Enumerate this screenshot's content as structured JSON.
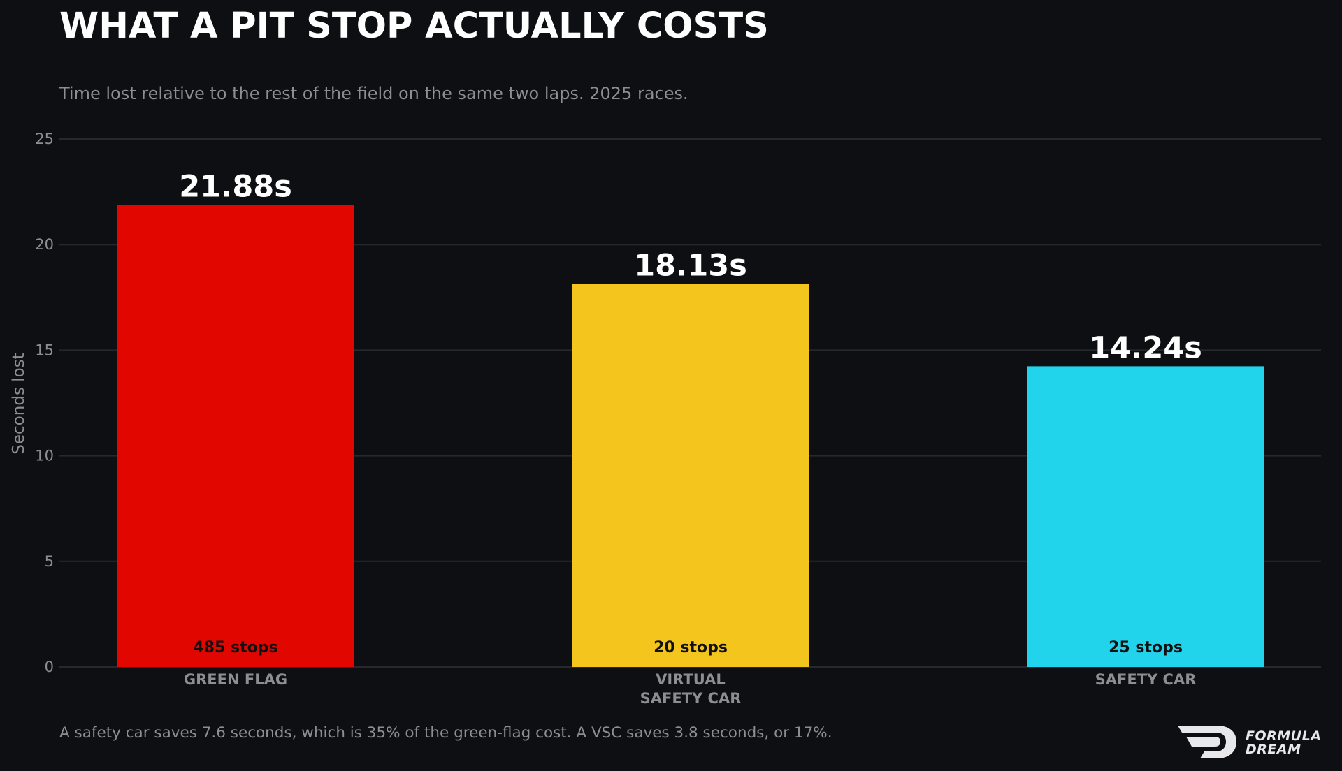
{
  "title": "WHAT A PIT STOP ACTUALLY COSTS",
  "subtitle": "Time lost relative to the rest of the field on the same two laps. 2025 races.",
  "footnote": "A safety car saves 7.6 seconds, which is 35% of the green-flag cost. A VSC saves 3.8 seconds, or 17%.",
  "logo": {
    "line1": "FORMULA",
    "line2": "DREAM"
  },
  "colors": {
    "background": "#0e0f12",
    "grid": "#26282d",
    "muted_text": "#8c8e94"
  },
  "chart_data": {
    "type": "bar",
    "categories": [
      "GREEN FLAG",
      "VIRTUAL\nSAFETY CAR",
      "SAFETY CAR"
    ],
    "values": [
      21.88,
      18.13,
      14.24
    ],
    "value_labels": [
      "21.88s",
      "18.13s",
      "14.24s"
    ],
    "inner_labels": [
      "485 stops",
      "20 stops",
      "25 stops"
    ],
    "colors": [
      "#e10600",
      "#f4c51d",
      "#22d3ec"
    ],
    "ylabel": "Seconds lost",
    "xlabel": "",
    "ylim": [
      0,
      25
    ],
    "yticks": [
      0,
      5,
      10,
      15,
      20,
      25
    ],
    "grid": true
  }
}
